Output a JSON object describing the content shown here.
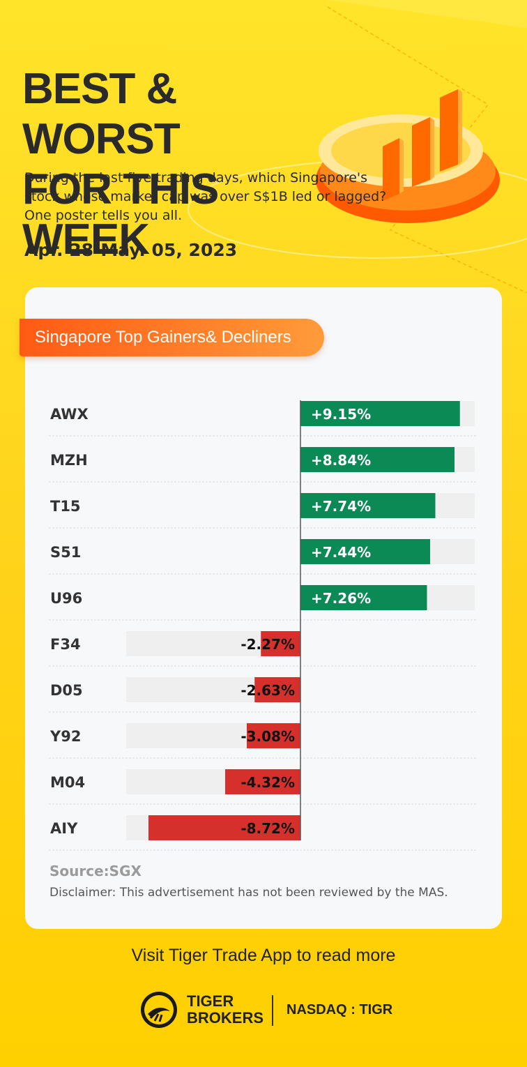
{
  "header": {
    "title_line1": "BEST & WORST",
    "title_line2": "FOR THIS WEEK",
    "subtitle": "During the last five trading days, which Singapore's stock whose market cap was over S$1B led or lagged? One poster tells you all.",
    "date_range": "Apr. 28-May. 05, 2023"
  },
  "card": {
    "tag_label": "Singapore Top Gainers& Decliners",
    "source": "Source:SGX",
    "disclaimer": "Disclaimer: This advertisement has not been reviewed by the MAS."
  },
  "colors": {
    "gain": "#0b8a55",
    "loss": "#d6302c",
    "track": "#efefef",
    "accent": "#ff6a1a"
  },
  "chart_data": {
    "type": "bar",
    "orientation": "horizontal-diverging",
    "title": "Singapore Top Gainers& Decliners",
    "categories": [
      "AWX",
      "MZH",
      "T15",
      "S51",
      "U96",
      "F34",
      "D05",
      "Y92",
      "M04",
      "AIY"
    ],
    "values": [
      9.15,
      8.84,
      7.74,
      7.44,
      7.26,
      -2.27,
      -2.63,
      -3.08,
      -4.32,
      -8.72
    ],
    "labels": [
      "+9.15%",
      "+8.84%",
      "+7.74%",
      "+7.44%",
      "+7.26%",
      "-2.27%",
      "-2.63%",
      "-3.08%",
      "-4.32%",
      "-8.72%"
    ],
    "unit": "%",
    "xlim": [
      -10,
      10
    ],
    "grid": false,
    "legend": "none"
  },
  "footer": {
    "visit": "Visit Tiger Trade App to read more",
    "brand_line1": "TIGER",
    "brand_line2": "BROKERS",
    "ticker": "NASDAQ : TIGR",
    "logo_icon": "tiger-logo-icon"
  }
}
